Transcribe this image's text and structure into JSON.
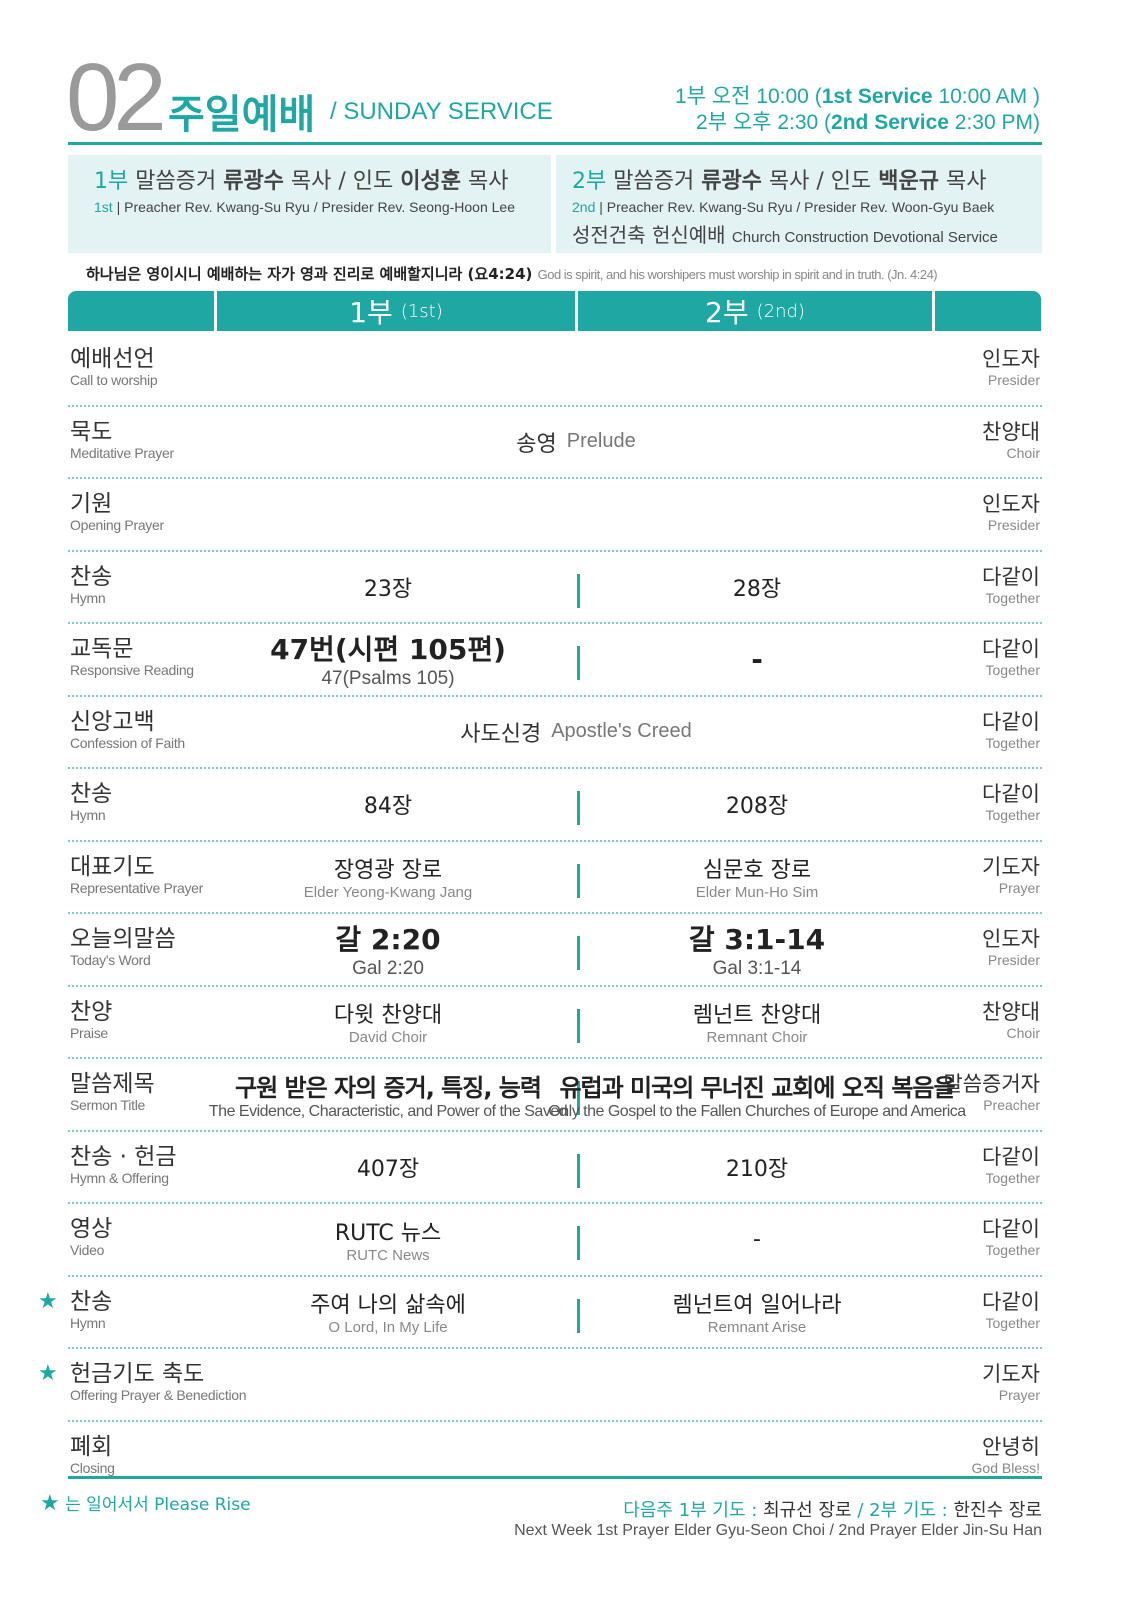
{
  "header": {
    "number": "02",
    "title": "주일예배",
    "subtitle": "/ SUNDAY SERVICE",
    "time1_ko": "1부 오전 10:00 (",
    "time1_en": "1st Service",
    "time1_tail": " 10:00 AM )",
    "time2_ko": "2부 오후 2:30 (",
    "time2_en": "2nd Service",
    "time2_tail": " 2:30 PM)"
  },
  "info": {
    "first": {
      "sv": "1부",
      "a": " 말씀증거 ",
      "preacher": "류광수",
      "b": " 목사 / 인도 ",
      "presider": "이성훈",
      "c": " 목사",
      "sv_en": "1st",
      "en": " | Preacher Rev. Kwang-Su Ryu / Presider Rev. Seong-Hoon Lee"
    },
    "second": {
      "sv": "2부",
      "a": " 말씀증거 ",
      "preacher": "류광수",
      "b": " 목사 / 인도 ",
      "presider": "백운규",
      "c": " 목사",
      "sv_en": "2nd",
      "en": " | Preacher Rev. Kwang-Su Ryu / Presider Rev. Woon-Gyu Baek",
      "special_ko": "성전건축 헌신예배 ",
      "special_en": "Church Construction Devotional Service"
    }
  },
  "verse": {
    "ko": "하나님은 영이시니 예배하는 자가 영과 진리로 예배할지니라 (요4:24) ",
    "en": "God is spirit, and his worshipers must worship in spirit and in truth. (Jn. 4:24)"
  },
  "table_head": {
    "first": "1부",
    "first_en": "(1st)",
    "second": "2부",
    "second_en": "(2nd)"
  },
  "rows": [
    {
      "ko": "예배선언",
      "en": "Call to worship",
      "rko": "인도자",
      "ren": "Presider"
    },
    {
      "ko": "묵도",
      "en": "Meditative Prayer",
      "rko": "찬양대",
      "ren": "Choir",
      "span_ko": "송영",
      "span_en": "Prelude"
    },
    {
      "ko": "기원",
      "en": "Opening Prayer",
      "rko": "인도자",
      "ren": "Presider"
    },
    {
      "ko": "찬송",
      "en": "Hymn",
      "rko": "다같이",
      "ren": "Together",
      "c1": "23장",
      "c2": "28장"
    },
    {
      "ko": "교독문",
      "en": "Responsive Reading",
      "rko": "다같이",
      "ren": "Together",
      "c1": "47번(시편 105편)",
      "c1en": "47(Psalms 105)",
      "c2": "-"
    },
    {
      "ko": "신앙고백",
      "en": "Confession of Faith",
      "rko": "다같이",
      "ren": "Together",
      "span_ko": "사도신경",
      "span_en": "Apostle's Creed"
    },
    {
      "ko": "찬송",
      "en": "Hymn",
      "rko": "다같이",
      "ren": "Together",
      "c1": "84장",
      "c2": "208장"
    },
    {
      "ko": "대표기도",
      "en": "Representative Prayer",
      "rko": "기도자",
      "ren": "Prayer",
      "c1": "장영광 장로",
      "c1en": "Elder Yeong-Kwang Jang",
      "c2": "심문호 장로",
      "c2en": "Elder Mun-Ho Sim"
    },
    {
      "ko": "오늘의말씀",
      "en": "Today's Word",
      "rko": "인도자",
      "ren": "Presider",
      "c1": "갈 2:20",
      "c1en": "Gal 2:20",
      "c2": "갈 3:1-14",
      "c2en": "Gal 3:1-14"
    },
    {
      "ko": "찬양",
      "en": "Praise",
      "rko": "찬양대",
      "ren": "Choir",
      "c1": "다윗 찬양대",
      "c1en": "David Choir",
      "c2": "렘넌트 찬양대",
      "c2en": "Remnant Choir"
    },
    {
      "ko": "말씀제목",
      "en": "Sermon Title",
      "rko": "말씀증거자",
      "ren": "Preacher",
      "c1": "구원 받은 자의 증거, 특징, 능력",
      "c1en": "The Evidence, Characteristic, and Power of the Saved",
      "c2": "유럽과 미국의 무너진 교회에 오직 복음을",
      "c2en": "Only the Gospel to the Fallen Churches of Europe and America"
    },
    {
      "ko": "찬송 · 헌금",
      "en": "Hymn & Offering",
      "rko": "다같이",
      "ren": "Together",
      "c1": "407장",
      "c2": "210장"
    },
    {
      "ko": "영상",
      "en": "Video",
      "rko": "다같이",
      "ren": "Together",
      "c1": "RUTC 뉴스",
      "c1en": "RUTC News",
      "c2": "-"
    },
    {
      "ko": "찬송",
      "en": "Hymn",
      "rko": "다같이",
      "ren": "Together",
      "star": "★",
      "c1": "주여 나의 삶속에",
      "c1en": "O Lord, In My Life",
      "c2": "렘넌트여 일어나라",
      "c2en": "Remnant Arise"
    },
    {
      "ko": "헌금기도 축도",
      "en": "Offering Prayer & Benediction",
      "rko": "기도자",
      "ren": "Prayer",
      "star": "★"
    },
    {
      "ko": "폐회",
      "en": "Closing",
      "rko": "안녕히",
      "ren": "God Bless!"
    }
  ],
  "footer": {
    "star": "★",
    "rise": " 는 일어서서 Please Rise",
    "next_label": "다음주  1부 기도 : ",
    "next_1": "최규선 장로",
    "next_mid": " / 2부 기도 : ",
    "next_2": "한진수 장로",
    "next_en": "Next Week 1st Prayer Elder Gyu-Seon Choi  /  2nd Prayer Elder Jin-Su Han"
  },
  "colors": {
    "accent": "#1fa7a4",
    "box": "#e3f2f2"
  }
}
